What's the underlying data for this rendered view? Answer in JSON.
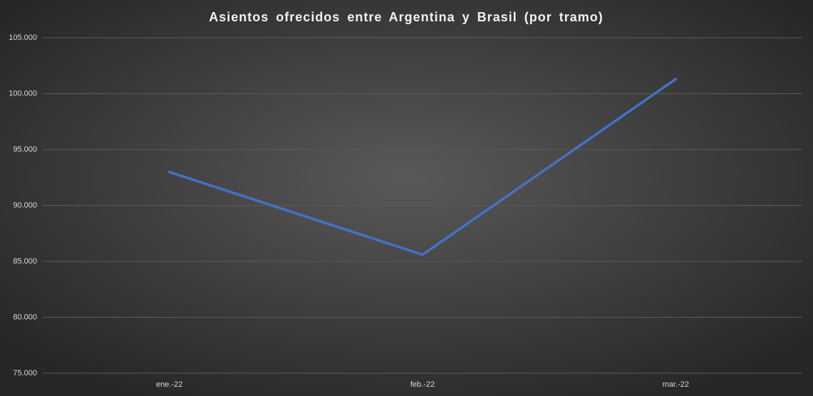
{
  "chart_data": {
    "type": "line",
    "title": "Asientos ofrecidos entre Argentina y Brasil (por tramo)",
    "categories": [
      "ene.-22",
      "feb.-22",
      "mar.-22"
    ],
    "series": [
      {
        "name": "Asientos",
        "color": "#4472c4",
        "values": [
          93000,
          85600,
          101300
        ]
      }
    ],
    "ylim": [
      75000,
      105000
    ],
    "yticks": [
      {
        "value": 75000,
        "label": "75.000"
      },
      {
        "value": 80000,
        "label": "80.000"
      },
      {
        "value": 85000,
        "label": "85.000"
      },
      {
        "value": 90000,
        "label": "90.000"
      },
      {
        "value": 95000,
        "label": "95.000"
      },
      {
        "value": 100000,
        "label": "100.000"
      },
      {
        "value": 105000,
        "label": "105.000"
      }
    ],
    "grid": true
  }
}
